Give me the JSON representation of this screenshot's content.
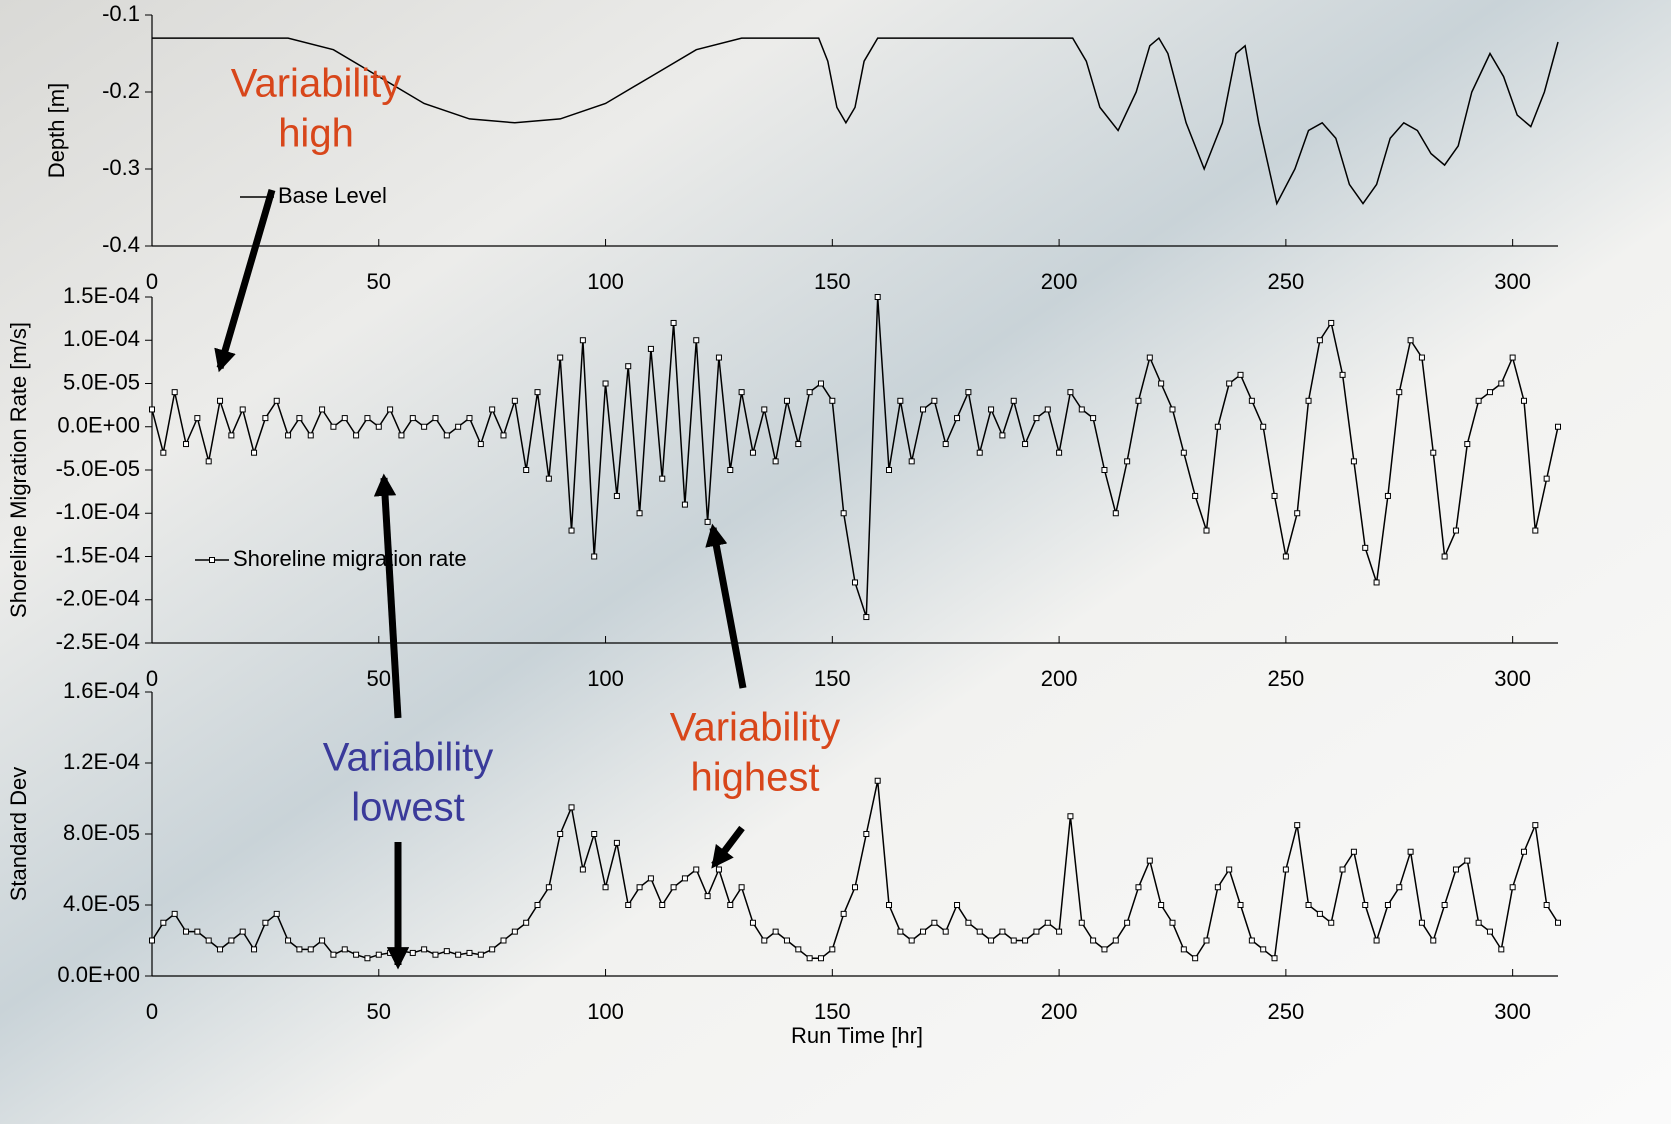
{
  "chart_data": [
    {
      "type": "line",
      "ylabel": "Depth [m]",
      "x": [
        0,
        30,
        40,
        50,
        60,
        70,
        80,
        90,
        100,
        110,
        120,
        130,
        147,
        149,
        151,
        153,
        155,
        157,
        160,
        203,
        206,
        209,
        213,
        217,
        220,
        222,
        224,
        228,
        232,
        236,
        239,
        241,
        244,
        248,
        252,
        255,
        258,
        261,
        264,
        267,
        270,
        273,
        276,
        279,
        282,
        285,
        288,
        291,
        295,
        298,
        301,
        304,
        307,
        310
      ],
      "series": [
        {
          "name": "Base Level",
          "color": "#000000",
          "values": [
            -0.13,
            -0.13,
            -0.145,
            -0.18,
            -0.215,
            -0.235,
            -0.24,
            -0.235,
            -0.215,
            -0.18,
            -0.145,
            -0.13,
            -0.13,
            -0.16,
            -0.22,
            -0.24,
            -0.22,
            -0.16,
            -0.13,
            -0.13,
            -0.16,
            -0.22,
            -0.25,
            -0.2,
            -0.14,
            -0.13,
            -0.15,
            -0.24,
            -0.3,
            -0.24,
            -0.15,
            -0.14,
            -0.24,
            -0.345,
            -0.3,
            -0.25,
            -0.24,
            -0.26,
            -0.32,
            -0.345,
            -0.32,
            -0.26,
            -0.24,
            -0.25,
            -0.28,
            -0.295,
            -0.27,
            -0.2,
            -0.15,
            -0.18,
            -0.23,
            -0.245,
            -0.2,
            -0.135
          ]
        }
      ],
      "xlim": [
        0,
        310
      ],
      "xticks": [
        0,
        50,
        100,
        150,
        200,
        250,
        300
      ],
      "ylim": [
        -0.4,
        -0.1
      ],
      "yticks": [
        -0.1,
        -0.2,
        -0.3,
        -0.4
      ]
    },
    {
      "type": "line",
      "markers": true,
      "ylabel": "Shoreline Migration Rate [m/s]",
      "x": [
        0,
        2.5,
        5,
        7.5,
        10,
        12.5,
        15,
        17.5,
        20,
        22.5,
        25,
        27.5,
        30,
        32.5,
        35,
        37.5,
        40,
        42.5,
        45,
        47.5,
        50,
        52.5,
        55,
        57.5,
        60,
        62.5,
        65,
        67.5,
        70,
        72.5,
        75,
        77.5,
        80,
        82.5,
        85,
        87.5,
        90,
        92.5,
        95,
        97.5,
        100,
        102.5,
        105,
        107.5,
        110,
        112.5,
        115,
        117.5,
        120,
        122.5,
        125,
        127.5,
        130,
        132.5,
        135,
        137.5,
        140,
        142.5,
        145,
        147.5,
        150,
        152.5,
        155,
        157.5,
        160,
        162.5,
        165,
        167.5,
        170,
        172.5,
        175,
        177.5,
        180,
        182.5,
        185,
        187.5,
        190,
        192.5,
        195,
        197.5,
        200,
        202.5,
        205,
        207.5,
        210,
        212.5,
        215,
        217.5,
        220,
        222.5,
        225,
        227.5,
        230,
        232.5,
        235,
        237.5,
        240,
        242.5,
        245,
        247.5,
        250,
        252.5,
        255,
        257.5,
        260,
        262.5,
        265,
        267.5,
        270,
        272.5,
        275,
        277.5,
        280,
        282.5,
        285,
        287.5,
        290,
        292.5,
        295,
        297.5,
        300,
        302.5,
        305,
        307.5,
        310
      ],
      "series": [
        {
          "name": "Shoreline migration rate",
          "color": "#000000",
          "values": [
            2e-05,
            -3e-05,
            4e-05,
            -2e-05,
            1e-05,
            -4e-05,
            3e-05,
            -1e-05,
            2e-05,
            -3e-05,
            1e-05,
            3e-05,
            -1e-05,
            1e-05,
            -1e-05,
            2e-05,
            0,
            1e-05,
            -1e-05,
            1e-05,
            0,
            2e-05,
            -1e-05,
            1e-05,
            0,
            1e-05,
            -1e-05,
            0,
            1e-05,
            -2e-05,
            2e-05,
            -1e-05,
            3e-05,
            -5e-05,
            4e-05,
            -6e-05,
            8e-05,
            -0.00012,
            0.0001,
            -0.00015,
            5e-05,
            -8e-05,
            7e-05,
            -0.0001,
            9e-05,
            -6e-05,
            0.00012,
            -9e-05,
            0.0001,
            -0.00011,
            8e-05,
            -5e-05,
            4e-05,
            -3e-05,
            2e-05,
            -4e-05,
            3e-05,
            -2e-05,
            4e-05,
            5e-05,
            3e-05,
            -0.0001,
            -0.00018,
            -0.00022,
            0.00015,
            -5e-05,
            3e-05,
            -4e-05,
            2e-05,
            3e-05,
            -2e-05,
            1e-05,
            4e-05,
            -3e-05,
            2e-05,
            -1e-05,
            3e-05,
            -2e-05,
            1e-05,
            2e-05,
            -3e-05,
            4e-05,
            2e-05,
            1e-05,
            -5e-05,
            -0.0001,
            -4e-05,
            3e-05,
            8e-05,
            5e-05,
            2e-05,
            -3e-05,
            -8e-05,
            -0.00012,
            0,
            5e-05,
            6e-05,
            3e-05,
            0,
            -8e-05,
            -0.00015,
            -0.0001,
            3e-05,
            0.0001,
            0.00012,
            6e-05,
            -4e-05,
            -0.00014,
            -0.00018,
            -8e-05,
            4e-05,
            0.0001,
            8e-05,
            -3e-05,
            -0.00015,
            -0.00012,
            -2e-05,
            3e-05,
            4e-05,
            5e-05,
            8e-05,
            3e-05,
            -0.00012,
            -6e-05,
            0
          ]
        }
      ],
      "xlim": [
        0,
        310
      ],
      "xticks": [
        0,
        50,
        100,
        150,
        200,
        250,
        300
      ],
      "ylim": [
        -0.00025,
        0.00015
      ],
      "yticks": [
        {
          "value": 0.00015,
          "label": "1.5E-04"
        },
        {
          "value": 0.0001,
          "label": "1.0E-04"
        },
        {
          "value": 5e-05,
          "label": "5.0E-05"
        },
        {
          "value": 0,
          "label": "0.0E+00"
        },
        {
          "value": -5e-05,
          "label": "-5.0E-05"
        },
        {
          "value": -0.0001,
          "label": "-1.0E-04"
        },
        {
          "value": -0.00015,
          "label": "-1.5E-04"
        },
        {
          "value": -0.0002,
          "label": "-2.0E-04"
        },
        {
          "value": -0.00025,
          "label": "-2.5E-04"
        }
      ]
    },
    {
      "type": "line",
      "markers": true,
      "ylabel": "Standard Dev",
      "xlabel": "Run Time [hr]",
      "x": [
        0,
        2.5,
        5,
        7.5,
        10,
        12.5,
        15,
        17.5,
        20,
        22.5,
        25,
        27.5,
        30,
        32.5,
        35,
        37.5,
        40,
        42.5,
        45,
        47.5,
        50,
        52.5,
        55,
        57.5,
        60,
        62.5,
        65,
        67.5,
        70,
        72.5,
        75,
        77.5,
        80,
        82.5,
        85,
        87.5,
        90,
        92.5,
        95,
        97.5,
        100,
        102.5,
        105,
        107.5,
        110,
        112.5,
        115,
        117.5,
        120,
        122.5,
        125,
        127.5,
        130,
        132.5,
        135,
        137.5,
        140,
        142.5,
        145,
        147.5,
        150,
        152.5,
        155,
        157.5,
        160,
        162.5,
        165,
        167.5,
        170,
        172.5,
        175,
        177.5,
        180,
        182.5,
        185,
        187.5,
        190,
        192.5,
        195,
        197.5,
        200,
        202.5,
        205,
        207.5,
        210,
        212.5,
        215,
        217.5,
        220,
        222.5,
        225,
        227.5,
        230,
        232.5,
        235,
        237.5,
        240,
        242.5,
        245,
        247.5,
        250,
        252.5,
        255,
        257.5,
        260,
        262.5,
        265,
        267.5,
        270,
        272.5,
        275,
        277.5,
        280,
        282.5,
        285,
        287.5,
        290,
        292.5,
        295,
        297.5,
        300,
        302.5,
        305,
        307.5,
        310
      ],
      "series": [
        {
          "color": "#000000",
          "values": [
            2e-05,
            3e-05,
            3.5e-05,
            2.5e-05,
            2.5e-05,
            2e-05,
            1.5e-05,
            2e-05,
            2.5e-05,
            1.5e-05,
            3e-05,
            3.5e-05,
            2e-05,
            1.5e-05,
            1.5e-05,
            2e-05,
            1.2e-05,
            1.5e-05,
            1.2e-05,
            1e-05,
            1.2e-05,
            1.3e-05,
            1.4e-05,
            1.3e-05,
            1.5e-05,
            1.2e-05,
            1.4e-05,
            1.2e-05,
            1.3e-05,
            1.2e-05,
            1.5e-05,
            2e-05,
            2.5e-05,
            3e-05,
            4e-05,
            5e-05,
            8e-05,
            9.5e-05,
            6e-05,
            8e-05,
            5e-05,
            7.5e-05,
            4e-05,
            5e-05,
            5.5e-05,
            4e-05,
            5e-05,
            5.5e-05,
            6e-05,
            4.5e-05,
            6e-05,
            4e-05,
            5e-05,
            3e-05,
            2e-05,
            2.5e-05,
            2e-05,
            1.5e-05,
            1e-05,
            1e-05,
            1.5e-05,
            3.5e-05,
            5e-05,
            8e-05,
            0.00011,
            4e-05,
            2.5e-05,
            2e-05,
            2.5e-05,
            3e-05,
            2.5e-05,
            4e-05,
            3e-05,
            2.5e-05,
            2e-05,
            2.5e-05,
            2e-05,
            2e-05,
            2.5e-05,
            3e-05,
            2.5e-05,
            9e-05,
            3e-05,
            2e-05,
            1.5e-05,
            2e-05,
            3e-05,
            5e-05,
            6.5e-05,
            4e-05,
            3e-05,
            1.5e-05,
            1e-05,
            2e-05,
            5e-05,
            6e-05,
            4e-05,
            2e-05,
            1.5e-05,
            1e-05,
            6e-05,
            8.5e-05,
            4e-05,
            3.5e-05,
            3e-05,
            6e-05,
            7e-05,
            4e-05,
            2e-05,
            4e-05,
            5e-05,
            7e-05,
            3e-05,
            2e-05,
            4e-05,
            6e-05,
            6.5e-05,
            3e-05,
            2.5e-05,
            1.5e-05,
            5e-05,
            7e-05,
            8.5e-05,
            4e-05,
            3e-05
          ]
        }
      ],
      "xlim": [
        0,
        310
      ],
      "xticks": [
        0,
        50,
        100,
        150,
        200,
        250,
        300
      ],
      "ylim": [
        0,
        0.00016
      ],
      "yticks": [
        {
          "value": 0.00016,
          "label": "1.6E-04"
        },
        {
          "value": 0.00012,
          "label": "1.2E-04"
        },
        {
          "value": 8e-05,
          "label": "8.0E-05"
        },
        {
          "value": 4e-05,
          "label": "4.0E-05"
        },
        {
          "value": 0,
          "label": "0.0E+00"
        }
      ]
    }
  ],
  "annotations": [
    {
      "lines": [
        "Variability",
        "high"
      ],
      "color": "#d8461a"
    },
    {
      "lines": [
        "Variability",
        "lowest"
      ],
      "color": "#3a3a9a"
    },
    {
      "lines": [
        "Variability",
        "highest"
      ],
      "color": "#d8461a"
    }
  ]
}
